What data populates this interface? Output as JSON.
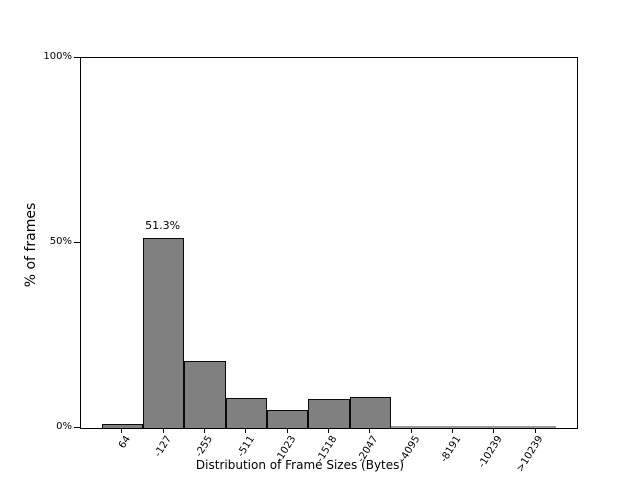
{
  "chart_data": {
    "type": "bar",
    "title": "",
    "xlabel": "Distribution of Frame Sizes (Bytes)",
    "ylabel": "% of frames",
    "categories": [
      "64",
      "-127",
      "-255",
      "-511",
      "-1023",
      "-1518",
      "-2047",
      "-4095",
      "-8191",
      "-10239",
      ">10239"
    ],
    "values": [
      1.0,
      51.3,
      18.2,
      8.1,
      4.9,
      7.8,
      8.4,
      0.1,
      0.1,
      0.05,
      0.05
    ],
    "bar_label": {
      "category": "-127",
      "text": "51.3%"
    },
    "ylim": [
      0,
      100
    ],
    "yticks": [
      {
        "label": "0%",
        "value": 0
      },
      {
        "label": "50%",
        "value": 50
      },
      {
        "label": "100%",
        "value": 100
      }
    ],
    "x_tick_rotation_deg": 58,
    "grid": false,
    "legend": "none",
    "bar_color": "#808080",
    "bar_edge_color": "#000000",
    "background_color": "#ffffff"
  }
}
